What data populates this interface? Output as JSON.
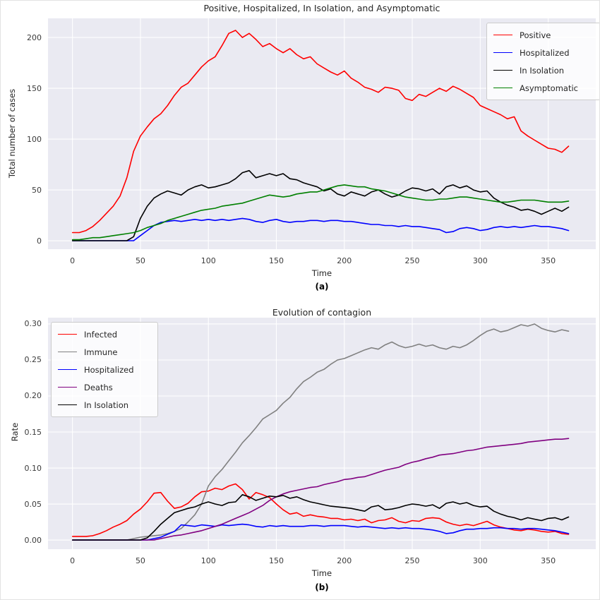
{
  "style": {
    "figure_bg": "#ffffff",
    "plot_bg": "#eaeaf2",
    "grid_color": "#ffffff",
    "text_color": "#262626"
  },
  "chart_data": [
    {
      "type": "line",
      "title": "Positive, Hospitalized, In Isolation, and Asymptomatic",
      "caption": "(a)",
      "xlabel": "Time",
      "ylabel": "Total number of cases",
      "x_start": 0,
      "x_step": 5,
      "x_ticks": [
        0,
        50,
        100,
        150,
        200,
        250,
        300,
        350
      ],
      "y_ticks": [
        0,
        50,
        100,
        150,
        200
      ],
      "xlim": [
        -18,
        385
      ],
      "ylim": [
        -8.3,
        218.8
      ],
      "y_tick_format": "int",
      "grid": true,
      "legend_position": "top-right",
      "series": [
        {
          "name": "Positive",
          "color": "#ff0000",
          "values": [
            8,
            8,
            10,
            14,
            20,
            27,
            34,
            44,
            62,
            88,
            103,
            112,
            120,
            125,
            133,
            143,
            151,
            155,
            163,
            171,
            177,
            181,
            192,
            204,
            207,
            200,
            204,
            198,
            191,
            194,
            189,
            185,
            189,
            183,
            179,
            181,
            174,
            170,
            166,
            163,
            167,
            160,
            156,
            151,
            149,
            146,
            151,
            150,
            148,
            140,
            138,
            144,
            142,
            146,
            150,
            147,
            152,
            149,
            145,
            141,
            133,
            130,
            127,
            124,
            120,
            122,
            108,
            103,
            99,
            95,
            91,
            90,
            87,
            93
          ]
        },
        {
          "name": "Hospitalized",
          "color": "#0000ff",
          "values": [
            0,
            0,
            0,
            0,
            0,
            0,
            0,
            0,
            0,
            0,
            5,
            10,
            15,
            18,
            19,
            20,
            19,
            20,
            21,
            20,
            21,
            20,
            21,
            20,
            21,
            22,
            21,
            19,
            18,
            20,
            21,
            19,
            18,
            19,
            19,
            20,
            20,
            19,
            20,
            20,
            19,
            19,
            18,
            17,
            16,
            16,
            15,
            15,
            14,
            15,
            14,
            14,
            13,
            12,
            11,
            8,
            9,
            12,
            13,
            12,
            10,
            11,
            13,
            14,
            13,
            14,
            13,
            14,
            15,
            14,
            14,
            13,
            12,
            10
          ]
        },
        {
          "name": "In Isolation",
          "color": "#000000",
          "values": [
            0,
            0,
            0,
            0,
            0,
            0,
            0,
            0,
            0,
            4,
            22,
            34,
            42,
            46,
            49,
            47,
            45,
            50,
            53,
            55,
            52,
            53,
            55,
            57,
            61,
            67,
            69,
            62,
            64,
            66,
            64,
            66,
            61,
            60,
            57,
            55,
            53,
            49,
            51,
            46,
            44,
            48,
            46,
            44,
            48,
            50,
            46,
            43,
            45,
            49,
            52,
            51,
            49,
            51,
            46,
            53,
            55,
            52,
            54,
            50,
            48,
            49,
            42,
            38,
            35,
            33,
            30,
            31,
            29,
            26,
            29,
            32,
            29,
            33
          ]
        },
        {
          "name": "Asymptomatic",
          "color": "#008000",
          "values": [
            1,
            1,
            2,
            3,
            3,
            4,
            5,
            6,
            7,
            8,
            10,
            13,
            15,
            17,
            20,
            22,
            24,
            26,
            28,
            30,
            31,
            32,
            34,
            35,
            36,
            37,
            39,
            41,
            43,
            45,
            44,
            43,
            44,
            46,
            47,
            48,
            48,
            50,
            52,
            54,
            55,
            54,
            53,
            53,
            51,
            50,
            49,
            47,
            45,
            43,
            42,
            41,
            40,
            40,
            41,
            41,
            42,
            43,
            43,
            42,
            41,
            40,
            39,
            38,
            38,
            39,
            40,
            40,
            40,
            39,
            38,
            38,
            38,
            39
          ]
        }
      ]
    },
    {
      "type": "line",
      "title": "Evolution of contagion",
      "caption": "(b)",
      "xlabel": "Time",
      "ylabel": "Rate",
      "x_start": 0,
      "x_step": 5,
      "x_ticks": [
        0,
        50,
        100,
        150,
        200,
        250,
        300,
        350
      ],
      "y_ticks": [
        0,
        0.05,
        0.1,
        0.15,
        0.2,
        0.25,
        0.3
      ],
      "xlim": [
        -18,
        385
      ],
      "ylim": [
        -0.0127,
        0.3088
      ],
      "y_tick_format": "fixed2",
      "grid": true,
      "legend_position": "top-left",
      "series": [
        {
          "name": "Infected",
          "color": "#ff0000",
          "values": [
            0.005,
            0.005,
            0.005,
            0.006,
            0.009,
            0.013,
            0.018,
            0.022,
            0.027,
            0.036,
            0.043,
            0.053,
            0.065,
            0.066,
            0.054,
            0.044,
            0.046,
            0.051,
            0.06,
            0.067,
            0.068,
            0.072,
            0.07,
            0.075,
            0.078,
            0.07,
            0.057,
            0.066,
            0.063,
            0.059,
            0.05,
            0.042,
            0.036,
            0.038,
            0.033,
            0.035,
            0.033,
            0.032,
            0.03,
            0.03,
            0.028,
            0.029,
            0.027,
            0.029,
            0.024,
            0.027,
            0.028,
            0.031,
            0.026,
            0.024,
            0.027,
            0.026,
            0.03,
            0.031,
            0.03,
            0.025,
            0.022,
            0.02,
            0.022,
            0.02,
            0.023,
            0.026,
            0.021,
            0.018,
            0.016,
            0.014,
            0.013,
            0.015,
            0.014,
            0.012,
            0.011,
            0.012,
            0.009,
            0.008
          ]
        },
        {
          "name": "Immune",
          "color": "#808080",
          "values": [
            0,
            0,
            0,
            0,
            0,
            0,
            0,
            0,
            0,
            0.002,
            0.004,
            0.005,
            0.006,
            0.007,
            0.009,
            0.012,
            0.016,
            0.025,
            0.035,
            0.05,
            0.075,
            0.088,
            0.098,
            0.11,
            0.122,
            0.135,
            0.145,
            0.156,
            0.168,
            0.174,
            0.18,
            0.19,
            0.198,
            0.21,
            0.22,
            0.226,
            0.233,
            0.237,
            0.244,
            0.25,
            0.252,
            0.256,
            0.26,
            0.264,
            0.267,
            0.265,
            0.271,
            0.275,
            0.27,
            0.267,
            0.269,
            0.272,
            0.269,
            0.271,
            0.267,
            0.265,
            0.269,
            0.267,
            0.271,
            0.277,
            0.284,
            0.29,
            0.293,
            0.289,
            0.291,
            0.295,
            0.299,
            0.297,
            0.3,
            0.294,
            0.291,
            0.289,
            0.292,
            0.29
          ]
        },
        {
          "name": "Hospitalized",
          "color": "#0000ff",
          "values": [
            0,
            0,
            0,
            0,
            0,
            0,
            0,
            0,
            0,
            0,
            0,
            0,
            0.002,
            0.004,
            0.008,
            0.012,
            0.021,
            0.02,
            0.019,
            0.021,
            0.02,
            0.019,
            0.021,
            0.02,
            0.021,
            0.022,
            0.021,
            0.019,
            0.018,
            0.02,
            0.019,
            0.02,
            0.019,
            0.019,
            0.019,
            0.02,
            0.02,
            0.019,
            0.02,
            0.02,
            0.02,
            0.019,
            0.018,
            0.019,
            0.018,
            0.017,
            0.016,
            0.017,
            0.016,
            0.017,
            0.016,
            0.016,
            0.015,
            0.014,
            0.012,
            0.009,
            0.01,
            0.013,
            0.015,
            0.015,
            0.016,
            0.016,
            0.017,
            0.017,
            0.016,
            0.016,
            0.015,
            0.016,
            0.016,
            0.015,
            0.014,
            0.013,
            0.011,
            0.009
          ]
        },
        {
          "name": "Deaths",
          "color": "#800080",
          "values": [
            0,
            0,
            0,
            0,
            0,
            0,
            0,
            0,
            0,
            0,
            0,
            0,
            0,
            0.002,
            0.004,
            0.006,
            0.007,
            0.009,
            0.011,
            0.013,
            0.016,
            0.019,
            0.022,
            0.026,
            0.03,
            0.034,
            0.038,
            0.043,
            0.048,
            0.055,
            0.06,
            0.064,
            0.067,
            0.069,
            0.071,
            0.073,
            0.074,
            0.077,
            0.079,
            0.081,
            0.084,
            0.085,
            0.087,
            0.088,
            0.091,
            0.094,
            0.097,
            0.099,
            0.101,
            0.105,
            0.108,
            0.11,
            0.113,
            0.115,
            0.118,
            0.119,
            0.12,
            0.122,
            0.124,
            0.125,
            0.127,
            0.129,
            0.13,
            0.131,
            0.132,
            0.133,
            0.134,
            0.136,
            0.137,
            0.138,
            0.139,
            0.14,
            0.14,
            0.141
          ]
        },
        {
          "name": "In Isolation",
          "color": "#000000",
          "values": [
            0,
            0,
            0,
            0,
            0,
            0,
            0,
            0,
            0,
            0,
            0,
            0.003,
            0.012,
            0.022,
            0.03,
            0.038,
            0.041,
            0.044,
            0.046,
            0.05,
            0.053,
            0.05,
            0.048,
            0.052,
            0.053,
            0.063,
            0.06,
            0.055,
            0.058,
            0.061,
            0.06,
            0.062,
            0.058,
            0.06,
            0.056,
            0.053,
            0.051,
            0.049,
            0.047,
            0.046,
            0.045,
            0.044,
            0.042,
            0.04,
            0.046,
            0.048,
            0.042,
            0.043,
            0.045,
            0.048,
            0.05,
            0.049,
            0.047,
            0.049,
            0.044,
            0.051,
            0.053,
            0.05,
            0.052,
            0.048,
            0.046,
            0.047,
            0.04,
            0.036,
            0.033,
            0.031,
            0.028,
            0.031,
            0.029,
            0.027,
            0.03,
            0.031,
            0.028,
            0.032
          ]
        }
      ]
    }
  ]
}
